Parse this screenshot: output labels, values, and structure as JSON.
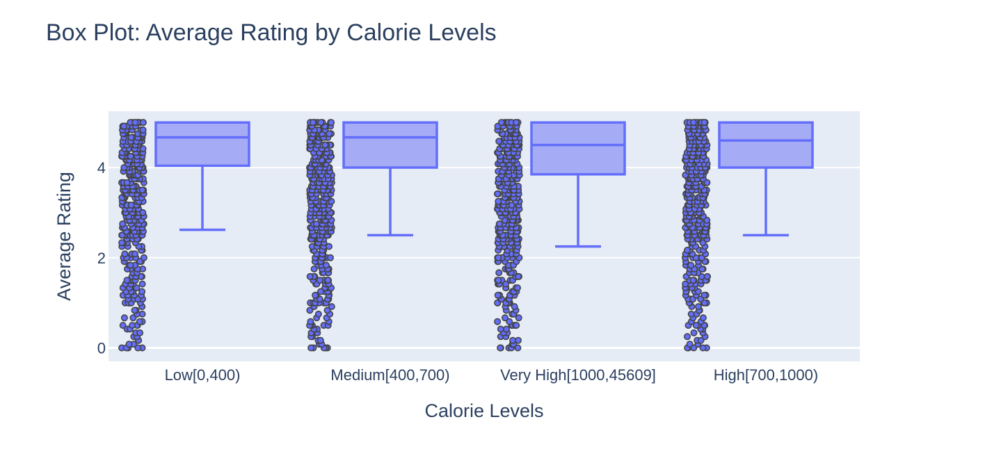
{
  "chart_data": {
    "type": "box",
    "title": "Box Plot: Average Rating by Calorie Levels",
    "xlabel": "Calorie Levels",
    "ylabel": "Average Rating",
    "ylim": [
      -0.3,
      5.25
    ],
    "yticks": [
      0,
      2,
      4
    ],
    "grid": true,
    "points": "all",
    "plot_background": "#e5ecf6",
    "box_color": "#636efa",
    "box_fill": "#a5abf5",
    "point_outline": "#444444",
    "categories": [
      "Low[0,400)",
      "Medium[400,700)",
      "Very High[1000,45609]",
      "High[700,1000)"
    ],
    "boxes": [
      {
        "category": "Low[0,400)",
        "lower_fence": 2.62,
        "q1": 4.04,
        "median": 4.67,
        "q3": 5.0,
        "upper_fence": 5.0,
        "min": 0,
        "max": 5
      },
      {
        "category": "Medium[400,700)",
        "lower_fence": 2.5,
        "q1": 4.0,
        "median": 4.67,
        "q3": 5.0,
        "upper_fence": 5.0,
        "min": 0,
        "max": 5
      },
      {
        "category": "Very High[1000,45609]",
        "lower_fence": 2.25,
        "q1": 3.85,
        "median": 4.5,
        "q3": 5.0,
        "upper_fence": 5.0,
        "min": 0,
        "max": 5
      },
      {
        "category": "High[700,1000)",
        "lower_fence": 2.5,
        "q1": 4.0,
        "median": 4.6,
        "q3": 5.0,
        "upper_fence": 5.0,
        "min": 0,
        "max": 5
      }
    ]
  }
}
